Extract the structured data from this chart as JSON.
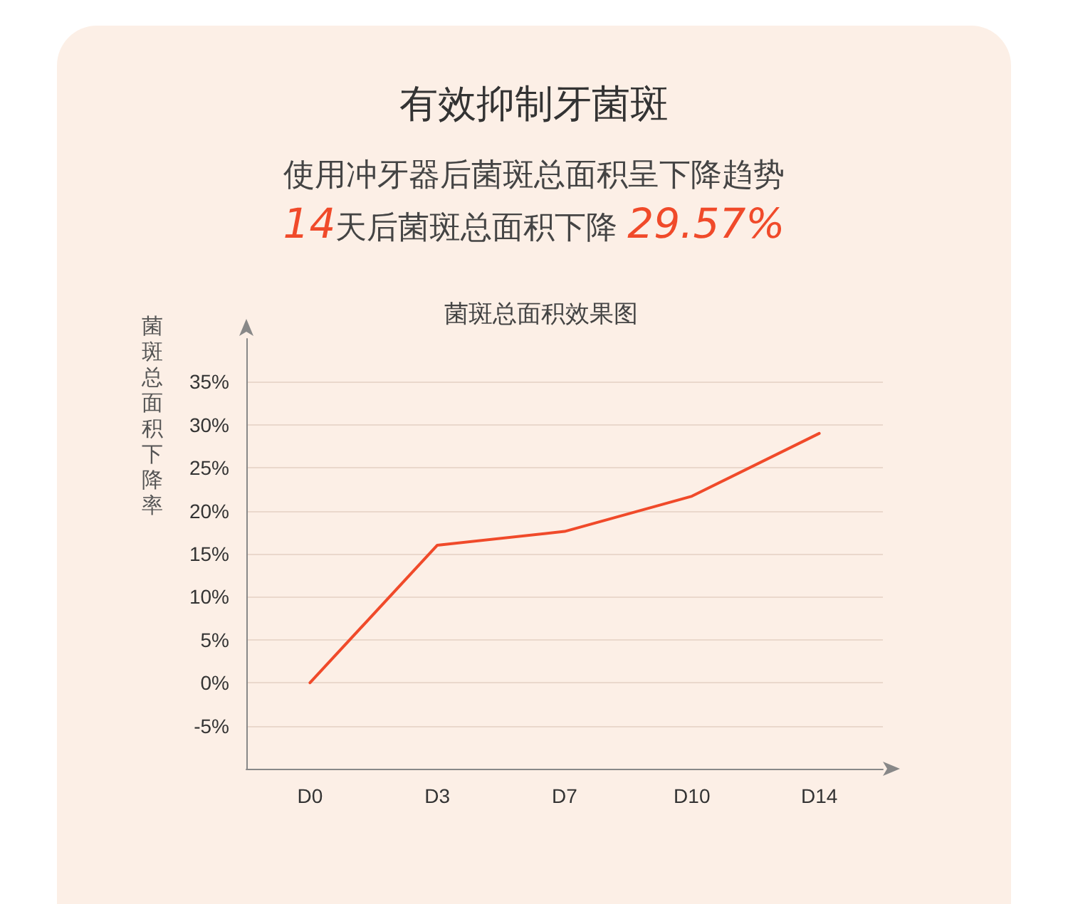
{
  "chart_data": {
    "type": "line",
    "title": "有效抑制牙菌斑",
    "subtitle": "使用冲牙器后菌斑总面积呈下降趋势",
    "annotations": [
      "14天后菌斑总面积下降 29.57%",
      "菌斑总面积效果图"
    ],
    "ylabel": "菌斑总面积下降率",
    "categories": [
      "D0",
      "D3",
      "D7",
      "D10",
      "D14"
    ],
    "series": [
      {
        "color": "#f04a2a",
        "values": [
          0,
          16,
          17.6,
          21.7,
          29
        ]
      }
    ],
    "ylim": [
      -10,
      40
    ],
    "yticks": [
      {
        "value": -5,
        "label": "-5%"
      },
      {
        "value": 0,
        "label": "0%"
      },
      {
        "value": 5,
        "label": "5%"
      },
      {
        "value": 10,
        "label": "10%"
      },
      {
        "value": 15,
        "label": "15%"
      },
      {
        "value": 20,
        "label": "20%"
      },
      {
        "value": 25,
        "label": "25%"
      },
      {
        "value": 30,
        "label": "30%"
      },
      {
        "value": 35,
        "label": "35%"
      }
    ],
    "grid": "y",
    "marker": "none",
    "line_style": "solid"
  }
}
